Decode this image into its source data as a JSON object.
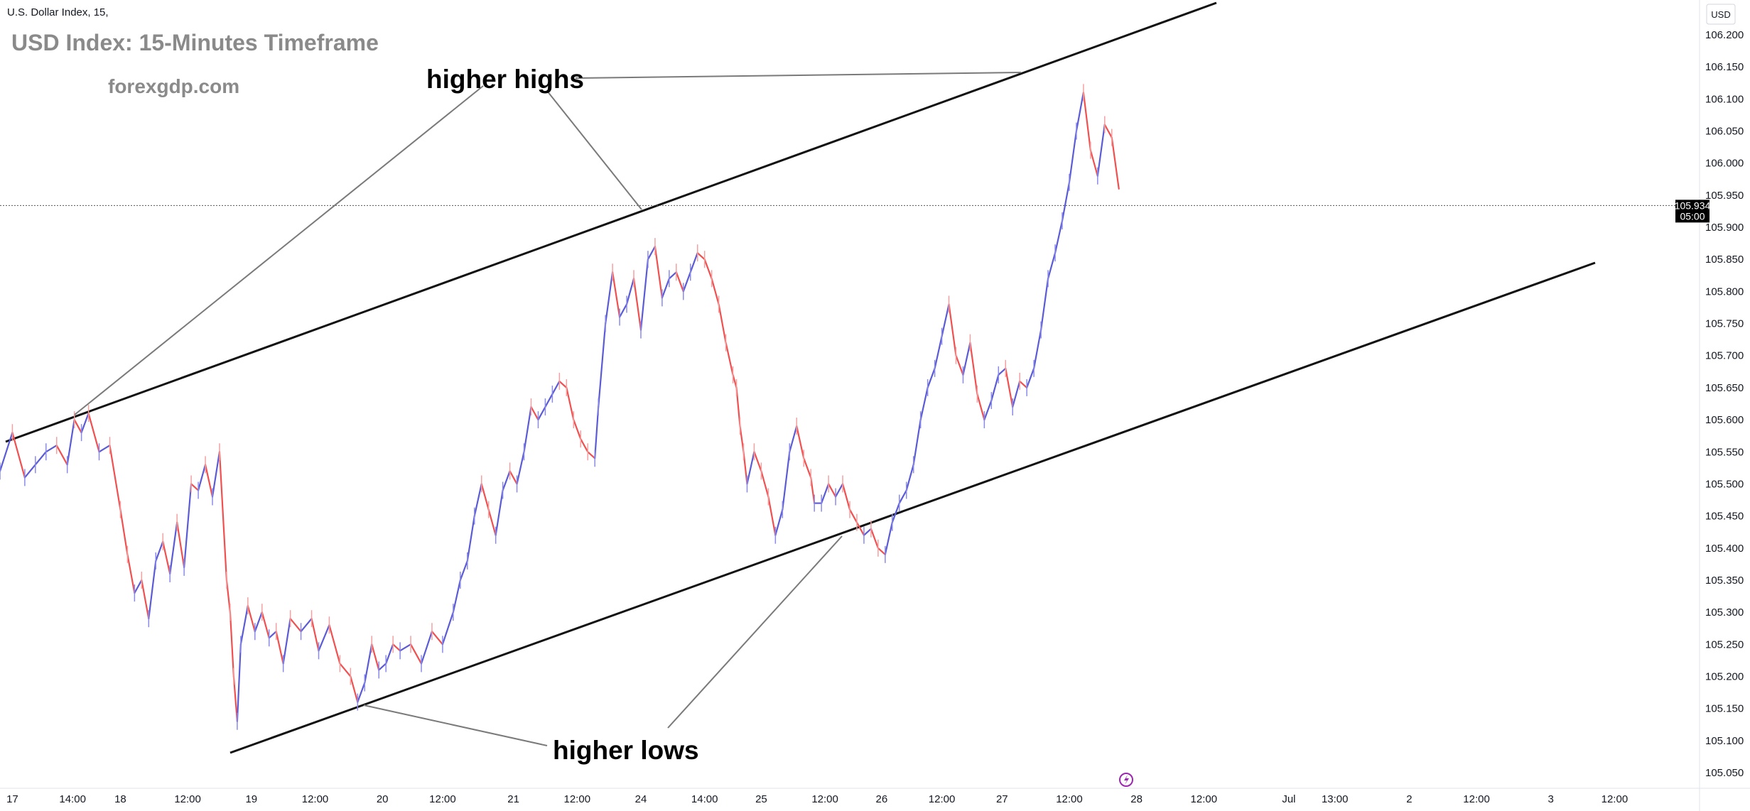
{
  "chart_data": {
    "type": "line",
    "symbol_line": "U.S. Dollar Index, 15,",
    "title": "USD Index: 15-Minutes Timeframe",
    "subtitle": "forexgdp.com",
    "currency": "USD",
    "last_price": "105.934",
    "countdown": "05:00",
    "ylim": [
      105.03,
      106.26
    ],
    "y_ticks": [
      "106.200",
      "106.150",
      "106.100",
      "106.050",
      "106.000",
      "105.950",
      "105.900",
      "105.850",
      "105.800",
      "105.750",
      "105.700",
      "105.650",
      "105.600",
      "105.550",
      "105.500",
      "105.450",
      "105.400",
      "105.350",
      "105.300",
      "105.250",
      "105.200",
      "105.150",
      "105.100",
      "105.050"
    ],
    "x_ticks": [
      "17",
      "14:00",
      "18",
      "12:00",
      "19",
      "12:00",
      "20",
      "12:00",
      "21",
      "12:00",
      "24",
      "14:00",
      "25",
      "12:00",
      "26",
      "12:00",
      "27",
      "12:00",
      "28",
      "12:00",
      "Jul",
      "13:00",
      "2",
      "12:00",
      "3",
      "12:00"
    ],
    "x_tick_pos": [
      0.35,
      2.05,
      3.4,
      5.3,
      7.1,
      8.9,
      10.8,
      12.5,
      14.5,
      16.3,
      18.1,
      19.9,
      21.5,
      23.3,
      24.9,
      26.6,
      28.3,
      30.2,
      32.1,
      34.0,
      36.4,
      37.7,
      39.8,
      41.7,
      43.8,
      45.6
    ],
    "xlim": [
      0,
      48
    ],
    "series": [
      {
        "x": [
          0,
          0.35,
          0.7,
          1.0,
          1.3,
          1.6,
          1.9,
          2.1,
          2.3,
          2.5,
          2.8,
          3.1,
          3.4,
          3.6,
          3.8,
          4.0,
          4.2,
          4.4,
          4.6,
          4.8,
          5.0,
          5.2,
          5.4,
          5.6,
          5.8,
          6.0,
          6.2,
          6.4,
          6.5,
          6.6,
          6.7,
          6.8,
          7.0,
          7.2,
          7.4,
          7.6,
          7.8,
          8.0,
          8.2,
          8.5,
          8.8,
          9.0,
          9.3,
          9.6,
          9.9,
          10.1,
          10.3,
          10.5,
          10.7,
          10.9,
          11.1,
          11.3,
          11.6,
          11.9,
          12.2,
          12.5,
          12.8,
          13.0,
          13.2,
          13.4,
          13.6,
          13.8,
          14.0,
          14.2,
          14.4,
          14.6,
          14.8,
          15.0,
          15.2,
          15.4,
          15.6,
          15.8,
          16.0,
          16.2,
          16.4,
          16.6,
          16.8,
          16.9,
          17.1,
          17.3,
          17.5,
          17.7,
          17.9,
          18.1,
          18.3,
          18.5,
          18.7,
          18.9,
          19.1,
          19.3,
          19.5,
          19.7,
          19.9,
          20.1,
          20.3,
          20.5,
          20.7,
          20.8,
          20.9,
          21.0,
          21.1,
          21.3,
          21.5,
          21.7,
          21.9,
          22.1,
          22.3,
          22.5,
          22.7,
          22.9,
          23.0,
          23.2,
          23.4,
          23.6,
          23.8,
          24.0,
          24.2,
          24.4,
          24.6,
          24.8,
          25.0,
          25.2,
          25.4,
          25.6,
          25.8,
          26.0,
          26.2,
          26.4,
          26.6,
          26.8,
          27.0,
          27.2,
          27.4,
          27.6,
          27.8,
          28.0,
          28.2,
          28.4,
          28.6,
          28.8,
          29.0,
          29.2,
          29.4,
          29.6,
          29.8,
          30.0,
          30.2,
          30.4,
          30.6,
          30.8,
          31.0,
          31.2,
          31.4,
          31.6
        ],
        "values": [
          105.52,
          105.58,
          105.51,
          105.53,
          105.55,
          105.56,
          105.53,
          105.6,
          105.58,
          105.61,
          105.55,
          105.56,
          105.46,
          105.39,
          105.33,
          105.35,
          105.29,
          105.38,
          105.41,
          105.36,
          105.44,
          105.37,
          105.5,
          105.49,
          105.53,
          105.48,
          105.55,
          105.35,
          105.3,
          105.2,
          105.13,
          105.25,
          105.31,
          105.27,
          105.3,
          105.26,
          105.27,
          105.22,
          105.29,
          105.27,
          105.29,
          105.24,
          105.28,
          105.22,
          105.2,
          105.16,
          105.19,
          105.25,
          105.21,
          105.22,
          105.25,
          105.24,
          105.25,
          105.22,
          105.27,
          105.25,
          105.3,
          105.35,
          105.38,
          105.45,
          105.5,
          105.46,
          105.42,
          105.49,
          105.52,
          105.5,
          105.55,
          105.62,
          105.6,
          105.62,
          105.64,
          105.66,
          105.65,
          105.6,
          105.57,
          105.55,
          105.54,
          105.62,
          105.75,
          105.83,
          105.76,
          105.78,
          105.82,
          105.74,
          105.85,
          105.87,
          105.79,
          105.82,
          105.83,
          105.8,
          105.83,
          105.86,
          105.85,
          105.82,
          105.78,
          105.72,
          105.67,
          105.65,
          105.59,
          105.55,
          105.5,
          105.55,
          105.52,
          105.48,
          105.42,
          105.46,
          105.55,
          105.59,
          105.54,
          105.51,
          105.47,
          105.47,
          105.5,
          105.48,
          105.5,
          105.46,
          105.44,
          105.42,
          105.43,
          105.4,
          105.39,
          105.44,
          105.47,
          105.49,
          105.53,
          105.6,
          105.65,
          105.68,
          105.73,
          105.78,
          105.7,
          105.67,
          105.72,
          105.64,
          105.6,
          105.63,
          105.67,
          105.68,
          105.62,
          105.66,
          105.65,
          105.68,
          105.74,
          105.82,
          105.86,
          105.91,
          105.97,
          106.05,
          106.11,
          106.02,
          105.98,
          106.06,
          106.04,
          105.96
        ]
      }
    ],
    "annotations": {
      "higher_highs": "higher highs",
      "higher_lows": "higher lows"
    }
  }
}
